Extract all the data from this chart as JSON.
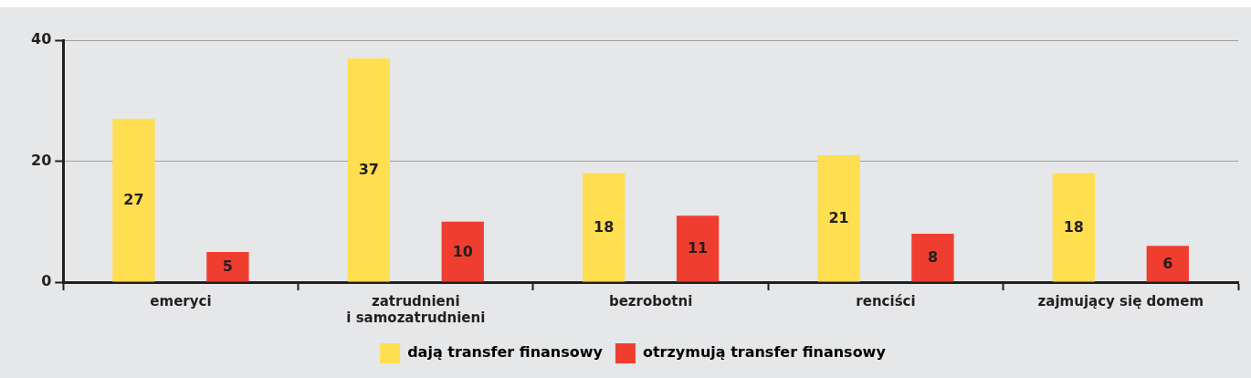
{
  "chart_data": {
    "type": "bar",
    "categories": [
      "emeryci",
      "zatrudnieni\ni samozatrudnieni",
      "bezrobotni",
      "renciści",
      "zajmujący się domem"
    ],
    "series": [
      {
        "name": "dają transfer finansowy",
        "color": "#ffde4f",
        "values": [
          27,
          37,
          18,
          21,
          18
        ]
      },
      {
        "name": "otrzymują transfer finansowy",
        "color": "#ef3e30",
        "values": [
          5,
          10,
          11,
          8,
          6
        ]
      }
    ],
    "ylim": [
      0,
      40
    ],
    "yticks": [
      0,
      20,
      40
    ],
    "grid": "y",
    "legend": "bottom",
    "data_labels": true
  }
}
